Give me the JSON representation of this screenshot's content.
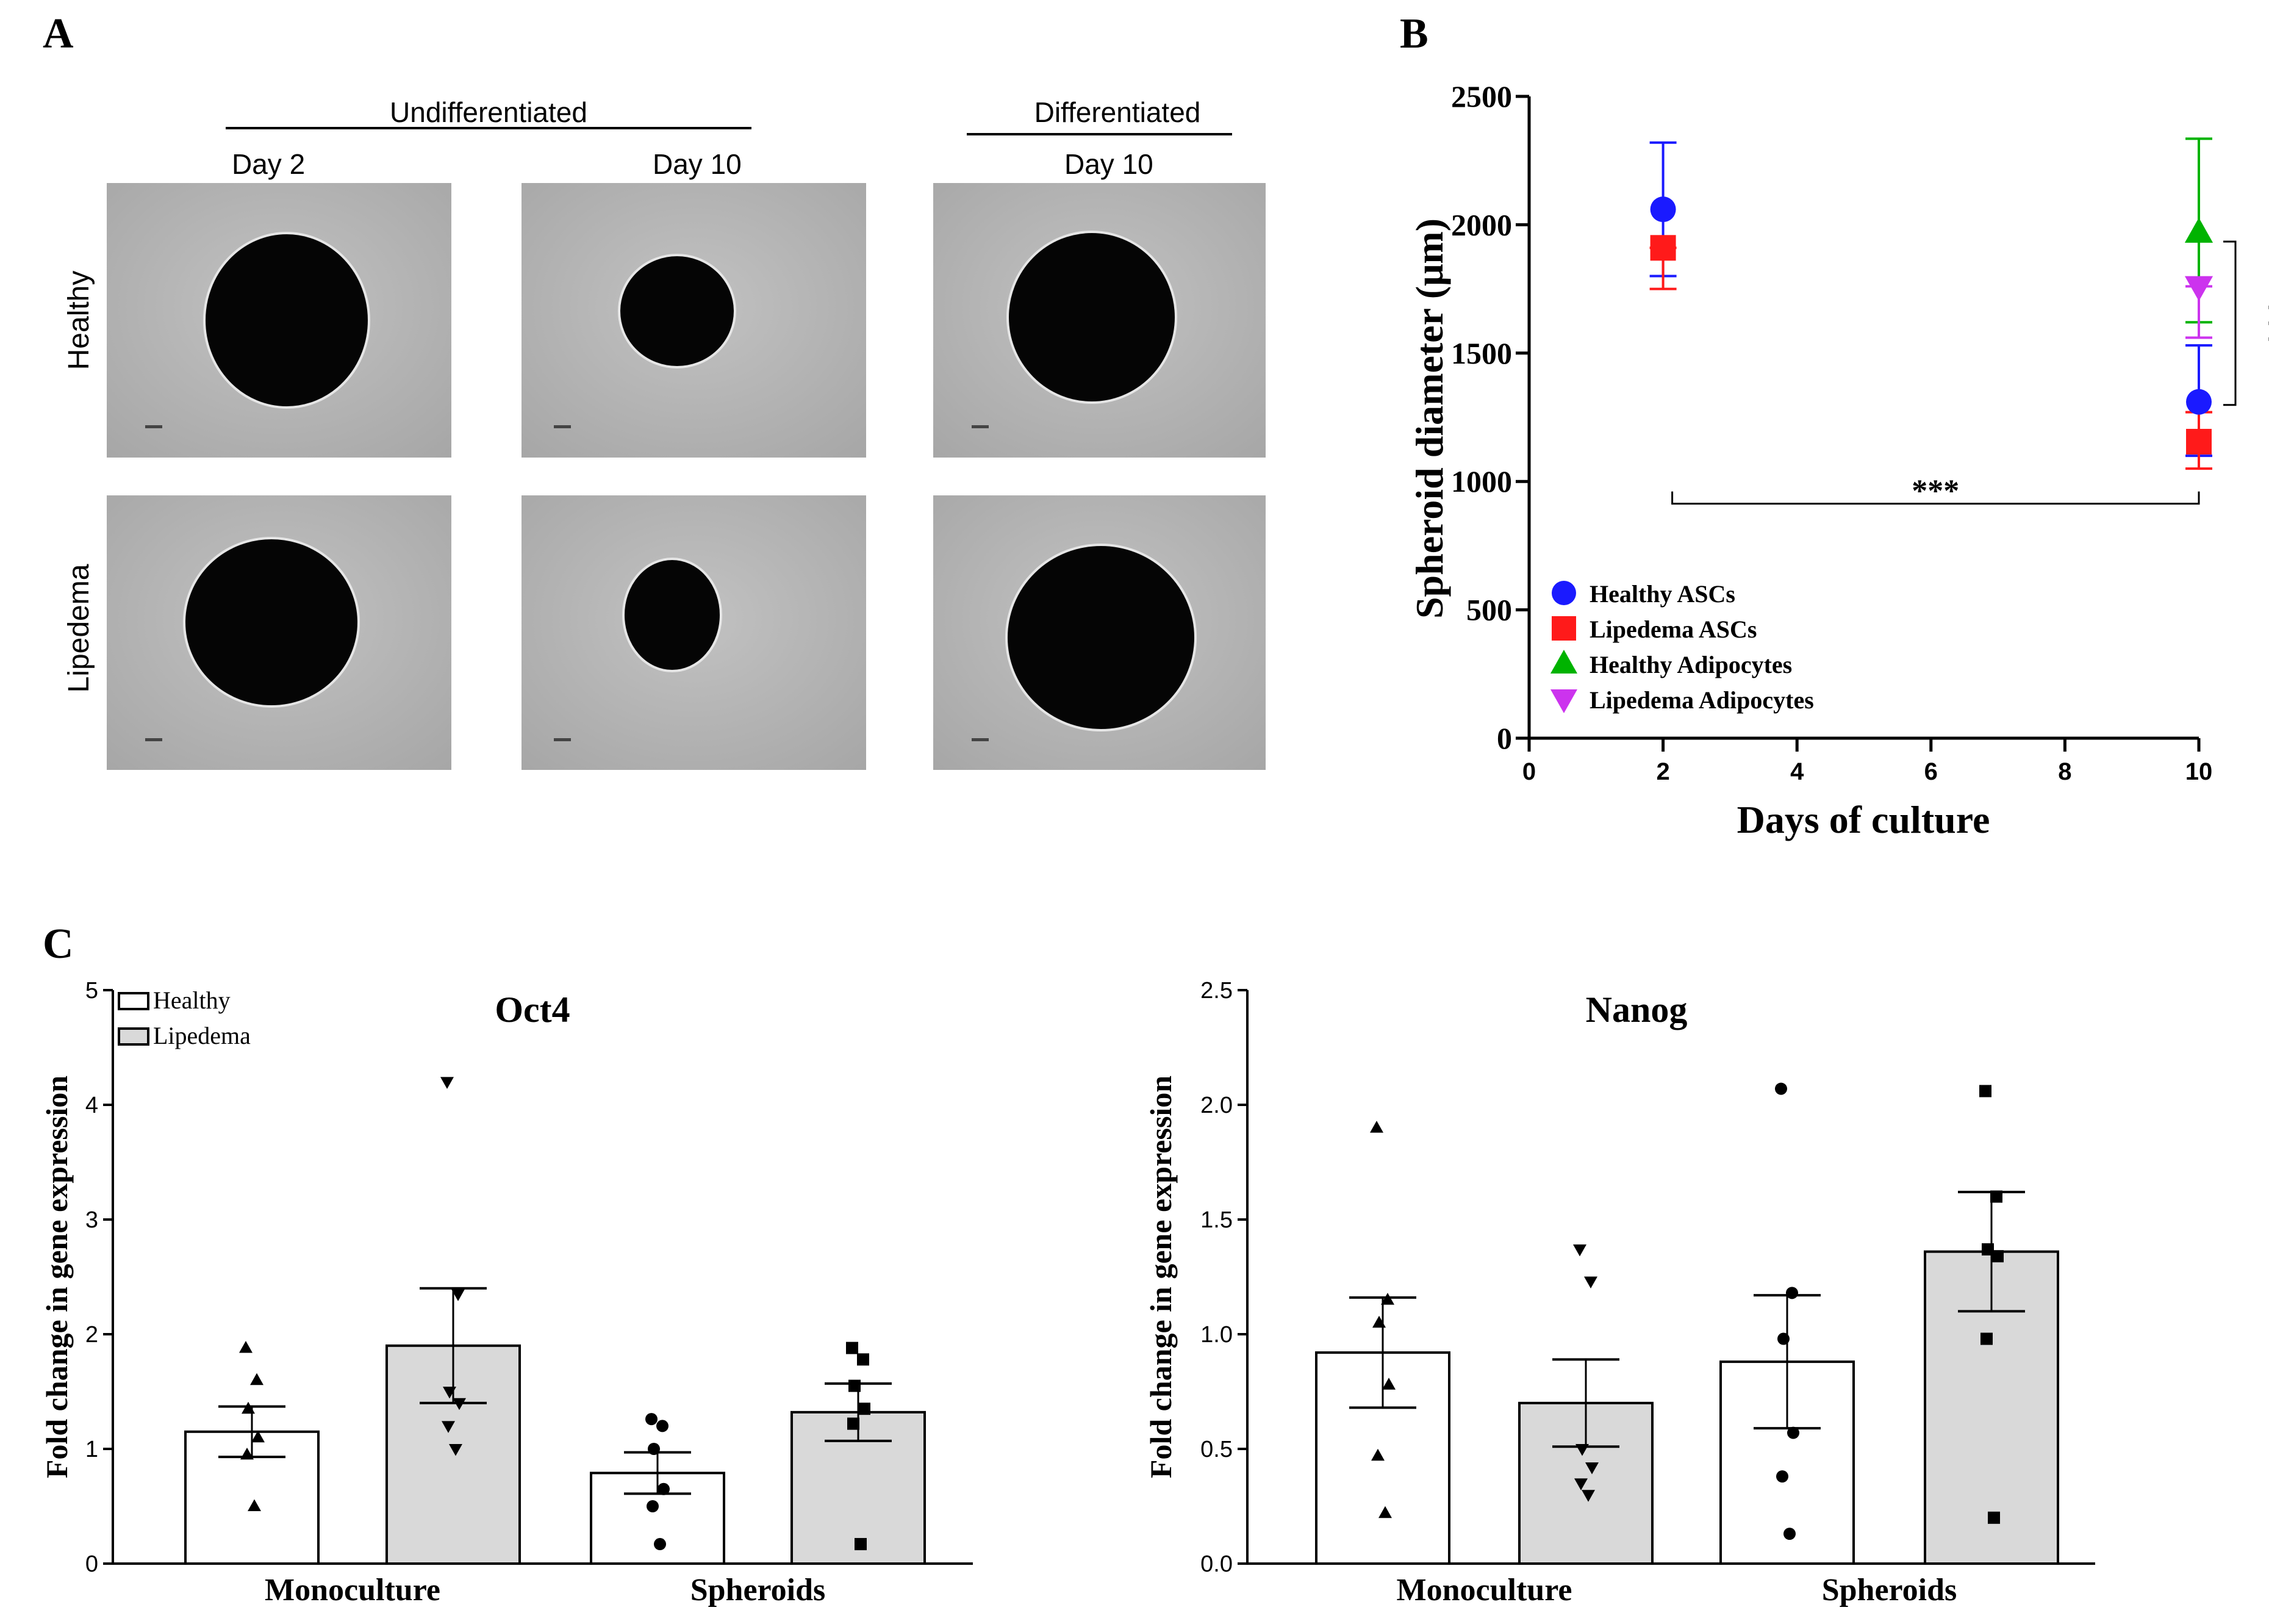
{
  "panels": {
    "a": {
      "letter": "A",
      "group_undifferentiated": "Undifferentiated",
      "group_differentiated": "Differentiated",
      "columns": [
        "Day 2",
        "Day 10",
        "Day 10"
      ],
      "rows": [
        "Healthy",
        "Lipedema"
      ]
    },
    "b": {
      "letter": "B"
    },
    "c": {
      "letter": "C"
    }
  },
  "chart_data": [
    {
      "type": "scatter",
      "panel": "B",
      "title": "",
      "xlabel": "Days of culture",
      "ylabel": "Spheroid diameter (μm)",
      "xlim": [
        0,
        10
      ],
      "ylim": [
        0,
        2500
      ],
      "xticks": [
        0,
        2,
        4,
        6,
        8,
        10
      ],
      "yticks": [
        0,
        500,
        1000,
        1500,
        2000,
        2500
      ],
      "legend_position": "bottom-left",
      "series": [
        {
          "name": "Healthy ASCs",
          "marker": "circle",
          "color": "#1a1aff",
          "points": [
            {
              "x": 2,
              "y": 2060,
              "err_low": 1800,
              "err_high": 2320
            },
            {
              "x": 10,
              "y": 1310,
              "err_low": 1100,
              "err_high": 1530
            }
          ]
        },
        {
          "name": "Lipedema ASCs",
          "marker": "square",
          "color": "#ff1a1a",
          "points": [
            {
              "x": 2,
              "y": 1910,
              "err_low": 1750,
              "err_high": 1910
            },
            {
              "x": 10,
              "y": 1155,
              "err_low": 1050,
              "err_high": 1270
            }
          ]
        },
        {
          "name": "Healthy Adipocytes",
          "marker": "triangle-up",
          "color": "#00b300",
          "points": [
            {
              "x": 10,
              "y": 1970,
              "err_low": 1620,
              "err_high": 2335
            }
          ]
        },
        {
          "name": "Lipedema Adipocytes",
          "marker": "triangle-down",
          "color": "#cc33ee",
          "points": [
            {
              "x": 10,
              "y": 1760,
              "err_low": 1560,
              "err_high": 1760
            }
          ]
        }
      ],
      "annotations": [
        {
          "text": "***",
          "orientation": "vertical",
          "between": [
            1310,
            1970
          ],
          "at_x": 10
        },
        {
          "text": "***",
          "orientation": "horizontal",
          "between_x": [
            2,
            10
          ],
          "at_y": 980
        }
      ]
    },
    {
      "type": "bar",
      "panel": "C-left",
      "title": "Oct4",
      "ylabel": "Fold change in gene expression",
      "ylim": [
        0,
        5
      ],
      "yticks": [
        "0",
        "1",
        "2",
        "3",
        "4",
        "5"
      ],
      "groups": [
        "Monoculture",
        "Spheroids"
      ],
      "legend": [
        {
          "name": "Healthy",
          "color": "#ffffff"
        },
        {
          "name": "Lipedema",
          "color": "#d9d9d9"
        }
      ],
      "legend_position": "top-left",
      "bars": [
        {
          "group": "Monoculture",
          "series": "Healthy",
          "value": 1.15,
          "sem": 0.22,
          "marker": "triangle-up",
          "points": [
            1.88,
            1.6,
            1.35,
            1.1,
            0.95,
            0.5
          ]
        },
        {
          "group": "Monoculture",
          "series": "Lipedema",
          "value": 1.9,
          "sem": 0.5,
          "marker": "triangle-down",
          "points": [
            4.2,
            2.35,
            1.5,
            1.4,
            1.2,
            1.0
          ]
        },
        {
          "group": "Spheroids",
          "series": "Healthy",
          "value": 0.79,
          "sem": 0.18,
          "marker": "circle",
          "points": [
            1.26,
            1.2,
            1.0,
            0.65,
            0.5,
            0.17
          ]
        },
        {
          "group": "Spheroids",
          "series": "Lipedema",
          "value": 1.32,
          "sem": 0.25,
          "marker": "square",
          "points": [
            1.88,
            1.78,
            1.55,
            1.35,
            1.22,
            0.17
          ]
        }
      ]
    },
    {
      "type": "bar",
      "panel": "C-right",
      "title": "Nanog",
      "ylabel": "Fold change in gene expression",
      "ylim": [
        0,
        2.5
      ],
      "yticks": [
        "0.0",
        "0.5",
        "1.0",
        "1.5",
        "2.0",
        "2.5"
      ],
      "groups": [
        "Monoculture",
        "Spheroids"
      ],
      "bars": [
        {
          "group": "Monoculture",
          "series": "Healthy",
          "value": 0.92,
          "sem": 0.24,
          "marker": "triangle-up",
          "points": [
            1.9,
            1.15,
            1.05,
            0.78,
            0.47,
            0.22
          ]
        },
        {
          "group": "Monoculture",
          "series": "Lipedema",
          "value": 0.7,
          "sem": 0.19,
          "marker": "triangle-down",
          "points": [
            1.37,
            1.23,
            0.5,
            0.42,
            0.35,
            0.3
          ]
        },
        {
          "group": "Spheroids",
          "series": "Healthy",
          "value": 0.88,
          "sem": 0.29,
          "marker": "circle",
          "points": [
            2.07,
            1.18,
            0.98,
            0.57,
            0.38,
            0.13
          ]
        },
        {
          "group": "Spheroids",
          "series": "Lipedema",
          "value": 1.36,
          "sem": 0.26,
          "marker": "square",
          "points": [
            2.06,
            1.6,
            1.37,
            1.34,
            0.98,
            0.2
          ]
        }
      ]
    }
  ],
  "colors": {
    "axis": "#000000",
    "image_background": "#b4b4b4",
    "spheroid": "#050505",
    "bar_lipedema": "#d9d9d9"
  }
}
